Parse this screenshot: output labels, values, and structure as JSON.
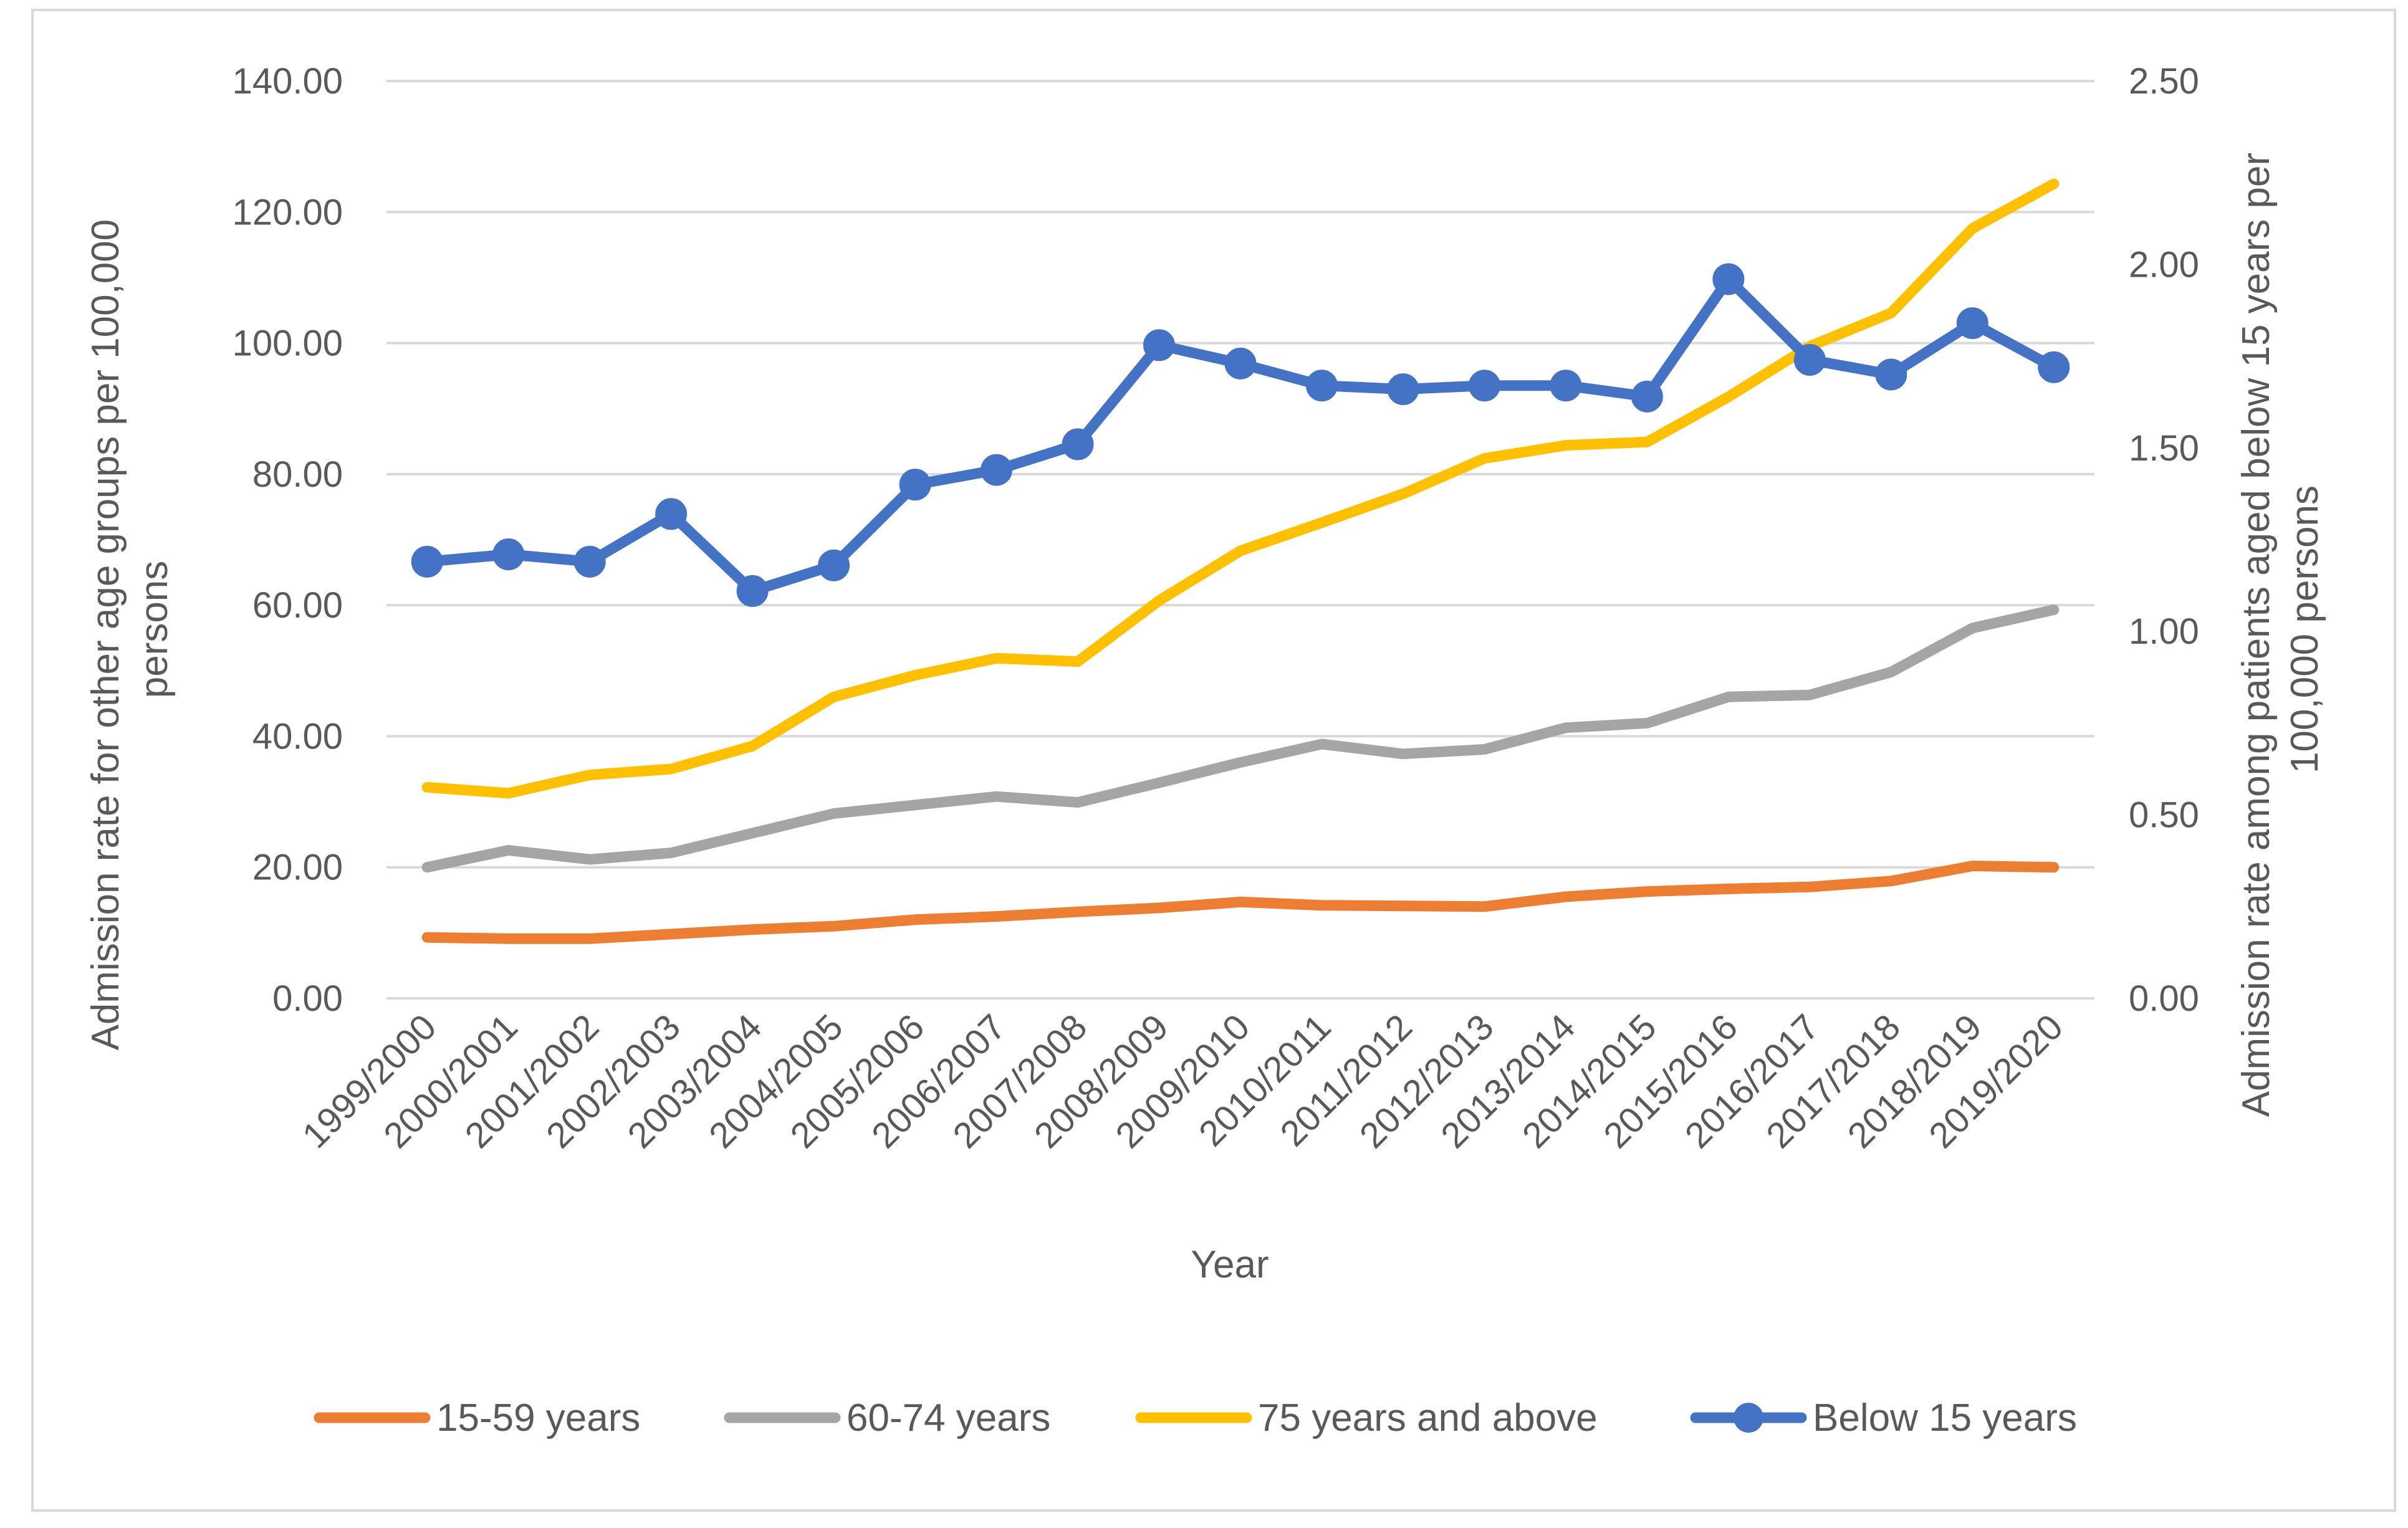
{
  "chart_data": {
    "type": "line",
    "title": "",
    "categories": [
      "1999/2000",
      "2000/2001",
      "2001/2002",
      "2002/2003",
      "2003/2004",
      "2004/2005",
      "2005/2006",
      "2006/2007",
      "2007/2008",
      "2008/2009",
      "2009/2010",
      "2010/2011",
      "2011/2012",
      "2012/2013",
      "2013/2014",
      "2014/2015",
      "2015/2016",
      "2016/2017",
      "2017/2018",
      "2018/2019",
      "2019/2020"
    ],
    "xlabel": "Year",
    "ylabel": "Admission rate for other age groups  per 100,000 persons",
    "ylabel_lines": [
      "Admission rate for other age groups  per 100,000",
      "persons"
    ],
    "y2label": "Admission rate among patients aged below 15 years per 100,000 persons",
    "y2label_lines": [
      "Admission rate among patients aged below 15 years per",
      "100,000 persons"
    ],
    "ylim": [
      0,
      140
    ],
    "yticks": [
      "0.00",
      "20.00",
      "40.00",
      "60.00",
      "80.00",
      "100.00",
      "120.00",
      "140.00"
    ],
    "y2lim": [
      0,
      2.5
    ],
    "y2ticks": [
      "0.00",
      "0.50",
      "1.00",
      "1.50",
      "2.00",
      "2.50"
    ],
    "grid": true,
    "legend_position": "bottom",
    "series": [
      {
        "name": "15-59 years",
        "axis": "left",
        "color": "#ED7D31",
        "markers": false,
        "values": [
          9.3,
          9.1,
          9.1,
          9.8,
          10.5,
          11.0,
          12.0,
          12.5,
          13.2,
          13.8,
          14.7,
          14.2,
          14.1,
          14.0,
          15.5,
          16.3,
          16.7,
          17.0,
          17.9,
          20.2,
          20.0
        ]
      },
      {
        "name": "60-74 years",
        "axis": "left",
        "color": "#A5A5A5",
        "markers": false,
        "values": [
          20.0,
          22.6,
          21.2,
          22.2,
          25.2,
          28.2,
          29.5,
          30.8,
          29.9,
          32.9,
          36.0,
          38.8,
          37.3,
          38.0,
          41.3,
          42.0,
          46.0,
          46.3,
          49.8,
          56.5,
          59.3
        ]
      },
      {
        "name": "75 years and above",
        "axis": "left",
        "color": "#FFC000",
        "markers": false,
        "values": [
          32.2,
          31.3,
          34.1,
          35.0,
          38.5,
          46.0,
          49.3,
          51.9,
          51.4,
          60.7,
          68.3,
          72.6,
          77.0,
          82.4,
          84.4,
          84.9,
          91.8,
          99.5,
          104.6,
          117.5,
          124.3
        ]
      },
      {
        "name": "Below 15 years",
        "axis": "right",
        "color": "#4472C4",
        "markers": true,
        "values": [
          1.19,
          1.21,
          1.19,
          1.32,
          1.11,
          1.18,
          1.4,
          1.44,
          1.51,
          1.78,
          1.73,
          1.67,
          1.66,
          1.67,
          1.67,
          1.64,
          1.96,
          1.74,
          1.7,
          1.84,
          1.72
        ]
      }
    ]
  }
}
